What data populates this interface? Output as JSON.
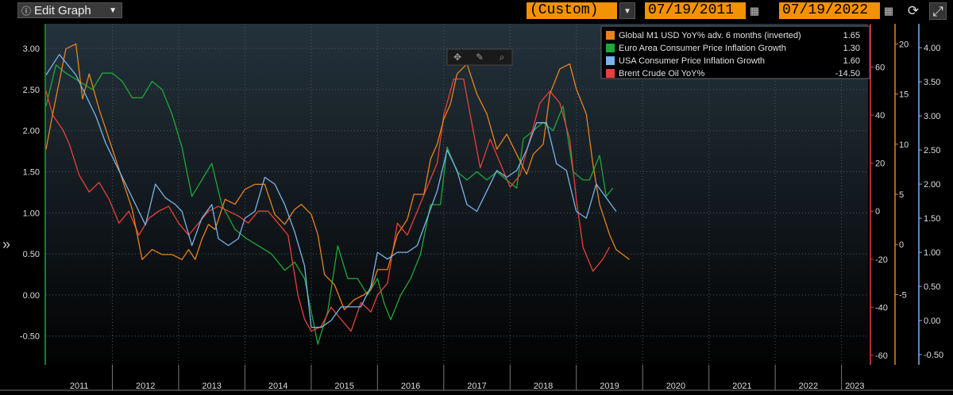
{
  "toolbar": {
    "edit_label": "Edit Graph",
    "edit_icon": "info-icon",
    "period": "(Custom)",
    "start_date": "07/19/2011",
    "end_date": "07/19/2022"
  },
  "colors": {
    "global_m1": "#e8821e",
    "euro_cpi": "#1ea83a",
    "usa_cpi": "#7ab4ea",
    "brent": "#e8403a",
    "axis_text": "#dddddd",
    "background": "#000000"
  },
  "chart_data": {
    "type": "line",
    "x_axis": {
      "range": [
        2011.0,
        2023.4
      ],
      "tick_labels": [
        "2011",
        "2012",
        "2013",
        "2014",
        "2015",
        "2016",
        "2017",
        "2018",
        "2019",
        "2020",
        "2021",
        "2022",
        "2023"
      ]
    },
    "y_axes": [
      {
        "id": "left",
        "range": [
          -0.85,
          3.3
        ],
        "ticks": [
          "-0.50",
          "0.00",
          "0.50",
          "1.00",
          "1.50",
          "2.00",
          "2.50",
          "3.00"
        ]
      },
      {
        "id": "right_red",
        "range": [
          -64,
          78
        ],
        "ticks": [
          "-60",
          "-40",
          "-20",
          "0",
          "20",
          "40",
          "60"
        ]
      },
      {
        "id": "right_orange",
        "range": [
          -12,
          22
        ],
        "ticks": [
          "-5",
          "0",
          "5",
          "10",
          "15",
          "20"
        ]
      },
      {
        "id": "right_blue",
        "range": [
          -0.65,
          4.35
        ],
        "ticks": [
          "-0.50",
          "0.00",
          "0.50",
          "1.00",
          "1.50",
          "2.00",
          "2.50",
          "3.00",
          "3.50",
          "4.00"
        ]
      }
    ],
    "legend": {
      "placement": "top-right"
    },
    "grid": true,
    "series": [
      {
        "name": "Global M1 USD YoY% adv. 6 months (inverted)",
        "value": "1.65",
        "axis": "right_orange",
        "x": [
          2011.0,
          2011.1,
          2011.3,
          2011.45,
          2011.55,
          2011.65,
          2011.8,
          2012.0,
          2012.15,
          2012.3,
          2012.45,
          2012.6,
          2012.75,
          2012.9,
          2013.05,
          2013.15,
          2013.25,
          2013.35,
          2013.45,
          2013.55,
          2013.7,
          2013.85,
          2014.0,
          2014.15,
          2014.3,
          2014.45,
          2014.6,
          2014.75,
          2014.85,
          2015.0,
          2015.1,
          2015.2,
          2015.35,
          2015.5,
          2015.65,
          2015.8,
          2015.9,
          2016.0,
          2016.15,
          2016.3,
          2016.45,
          2016.55,
          2016.7,
          2016.8,
          2016.9,
          2017.0,
          2017.1,
          2017.2,
          2017.35,
          2017.5,
          2017.65,
          2017.8,
          2017.95,
          2018.1,
          2018.25,
          2018.35,
          2018.5,
          2018.6,
          2018.75,
          2018.9,
          2019.0,
          2019.15,
          2019.25,
          2019.35,
          2019.5,
          2019.6,
          2019.7,
          2019.8
        ],
        "y": [
          9.5,
          13.0,
          19.5,
          20.0,
          14.5,
          17.0,
          13.5,
          9.5,
          6.5,
          3.5,
          -1.5,
          -0.5,
          -1.0,
          -1.0,
          -1.5,
          -0.5,
          -1.5,
          0.5,
          2.0,
          1.5,
          4.5,
          4.0,
          5.5,
          6.0,
          6.0,
          3.0,
          2.0,
          3.5,
          4.0,
          3.0,
          1.0,
          -3.0,
          -4.0,
          -6.5,
          -5.5,
          -5.0,
          -4.5,
          -2.5,
          -2.5,
          1.0,
          2.5,
          5.0,
          5.0,
          8.5,
          10.0,
          12.5,
          14.0,
          17.0,
          18.0,
          15.0,
          13.0,
          9.5,
          11.0,
          9.0,
          7.0,
          9.0,
          10.0,
          15.0,
          17.5,
          18.0,
          15.5,
          13.0,
          8.0,
          4.0,
          1.0,
          -0.5,
          -1.0,
          -1.5
        ]
      },
      {
        "name": "Euro Area Consumer Price Inflation Growth",
        "value": "1.30",
        "axis": "left",
        "x": [
          2011.0,
          2011.15,
          2011.3,
          2011.5,
          2011.7,
          2011.85,
          2012.0,
          2012.15,
          2012.3,
          2012.45,
          2012.6,
          2012.75,
          2012.9,
          2013.05,
          2013.2,
          2013.35,
          2013.5,
          2013.65,
          2013.85,
          2014.0,
          2014.2,
          2014.4,
          2014.6,
          2014.75,
          2014.9,
          2015.0,
          2015.1,
          2015.25,
          2015.4,
          2015.55,
          2015.7,
          2015.85,
          2016.0,
          2016.1,
          2016.2,
          2016.35,
          2016.5,
          2016.65,
          2016.8,
          2016.95,
          2017.05,
          2017.2,
          2017.35,
          2017.5,
          2017.65,
          2017.8,
          2017.95,
          2018.1,
          2018.2,
          2018.35,
          2018.5,
          2018.65,
          2018.8,
          2018.95,
          2019.1,
          2019.2,
          2019.35,
          2019.45,
          2019.55
        ],
        "y": [
          2.3,
          2.8,
          2.7,
          2.6,
          2.5,
          2.7,
          2.7,
          2.6,
          2.4,
          2.4,
          2.6,
          2.5,
          2.2,
          1.8,
          1.2,
          1.4,
          1.6,
          1.1,
          0.8,
          0.7,
          0.6,
          0.5,
          0.3,
          0.4,
          0.2,
          -0.2,
          -0.6,
          -0.2,
          0.6,
          0.2,
          0.2,
          0.0,
          0.2,
          -0.1,
          -0.3,
          0.0,
          0.2,
          0.5,
          1.1,
          1.1,
          1.8,
          1.5,
          1.4,
          1.5,
          1.4,
          1.5,
          1.4,
          1.3,
          1.9,
          2.0,
          2.1,
          2.0,
          2.3,
          1.5,
          1.4,
          1.4,
          1.7,
          1.2,
          1.3
        ]
      },
      {
        "name": "USA Consumer Price Inflation Growth",
        "value": "1.60",
        "axis": "right_blue",
        "x": [
          2011.0,
          2011.2,
          2011.45,
          2011.6,
          2011.75,
          2011.9,
          2012.05,
          2012.2,
          2012.35,
          2012.5,
          2012.65,
          2012.8,
          2012.95,
          2013.05,
          2013.2,
          2013.35,
          2013.5,
          2013.6,
          2013.75,
          2013.9,
          2014.0,
          2014.15,
          2014.3,
          2014.45,
          2014.6,
          2014.75,
          2014.9,
          2015.0,
          2015.15,
          2015.3,
          2015.45,
          2015.6,
          2015.75,
          2015.9,
          2016.0,
          2016.15,
          2016.3,
          2016.45,
          2016.6,
          2016.75,
          2016.9,
          2017.05,
          2017.2,
          2017.35,
          2017.5,
          2017.65,
          2017.8,
          2017.95,
          2018.1,
          2018.25,
          2018.4,
          2018.55,
          2018.7,
          2018.85,
          2019.0,
          2019.15,
          2019.3,
          2019.45,
          2019.6
        ],
        "y": [
          3.6,
          3.9,
          3.6,
          3.3,
          3.0,
          2.6,
          2.3,
          2.0,
          1.7,
          1.4,
          2.0,
          1.8,
          1.7,
          1.6,
          1.1,
          1.5,
          1.7,
          1.2,
          1.1,
          1.2,
          1.5,
          1.6,
          2.1,
          2.0,
          1.7,
          1.3,
          0.8,
          -0.1,
          -0.1,
          0.0,
          0.2,
          0.2,
          0.2,
          0.5,
          1.0,
          0.9,
          1.0,
          1.0,
          1.1,
          1.5,
          1.9,
          2.5,
          2.2,
          1.7,
          1.6,
          1.9,
          2.2,
          2.1,
          2.2,
          2.5,
          2.9,
          2.9,
          2.3,
          2.2,
          1.6,
          1.5,
          2.0,
          1.8,
          1.6
        ]
      },
      {
        "name": "Brent Crude Oil YoY%",
        "value": "-14.50",
        "axis": "right_red",
        "x": [
          2011.0,
          2011.1,
          2011.25,
          2011.35,
          2011.5,
          2011.65,
          2011.8,
          2011.95,
          2012.1,
          2012.25,
          2012.4,
          2012.55,
          2012.7,
          2012.85,
          2013.0,
          2013.15,
          2013.3,
          2013.45,
          2013.6,
          2013.75,
          2013.9,
          2014.05,
          2014.2,
          2014.35,
          2014.5,
          2014.65,
          2014.8,
          2014.9,
          2015.0,
          2015.15,
          2015.3,
          2015.45,
          2015.6,
          2015.75,
          2015.9,
          2016.0,
          2016.15,
          2016.3,
          2016.45,
          2016.6,
          2016.75,
          2016.9,
          2017.0,
          2017.15,
          2017.3,
          2017.4,
          2017.55,
          2017.7,
          2017.85,
          2018.0,
          2018.15,
          2018.3,
          2018.45,
          2018.6,
          2018.75,
          2018.9,
          2019.0,
          2019.1,
          2019.25,
          2019.4,
          2019.5
        ],
        "y": [
          50,
          40,
          34,
          28,
          15,
          8,
          12,
          5,
          -5,
          0,
          -10,
          -3,
          0,
          2,
          -5,
          -10,
          -5,
          0,
          2,
          0,
          -2,
          -5,
          0,
          0,
          -5,
          -10,
          -35,
          -45,
          -50,
          -48,
          -40,
          -45,
          -50,
          -38,
          -42,
          -35,
          -30,
          -5,
          -10,
          0,
          10,
          20,
          40,
          55,
          55,
          40,
          18,
          30,
          20,
          10,
          15,
          30,
          45,
          50,
          45,
          30,
          5,
          -15,
          -25,
          -20,
          -15
        ]
      }
    ]
  }
}
